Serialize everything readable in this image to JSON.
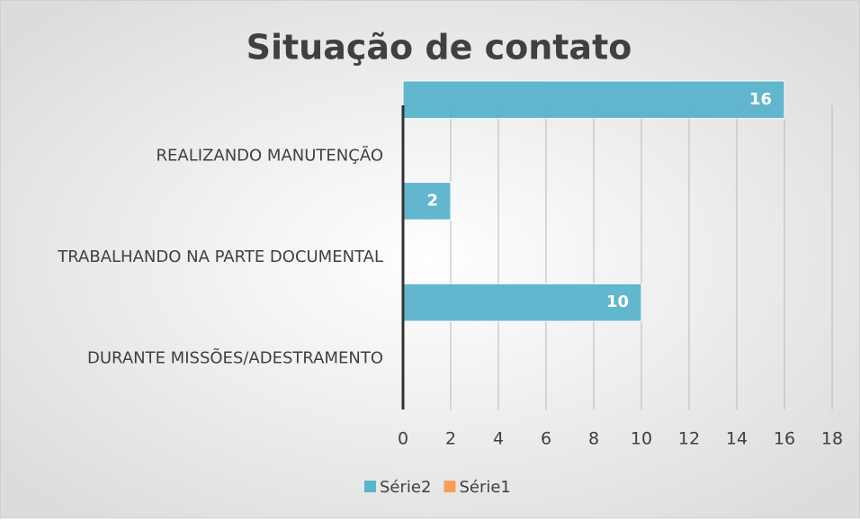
{
  "chart_data": {
    "type": "bar",
    "orientation": "horizontal",
    "title": "Situação de contato",
    "categories": [
      "REALIZANDO MANUTENÇÃO",
      "TRABALHANDO NA PARTE DOCUMENTAL",
      "DURANTE MISSÕES/ADESTRAMENTO"
    ],
    "series": [
      {
        "name": "Série2",
        "color": "#5ab4cc",
        "values": [
          16,
          2,
          10
        ]
      },
      {
        "name": "Série1",
        "color": "#f79f5a",
        "values": [
          null,
          null,
          null
        ]
      }
    ],
    "xlim": [
      0,
      18
    ],
    "xticks": [
      0,
      2,
      4,
      6,
      8,
      10,
      12,
      14,
      16,
      18
    ],
    "grid": true,
    "legend": "bottom"
  }
}
